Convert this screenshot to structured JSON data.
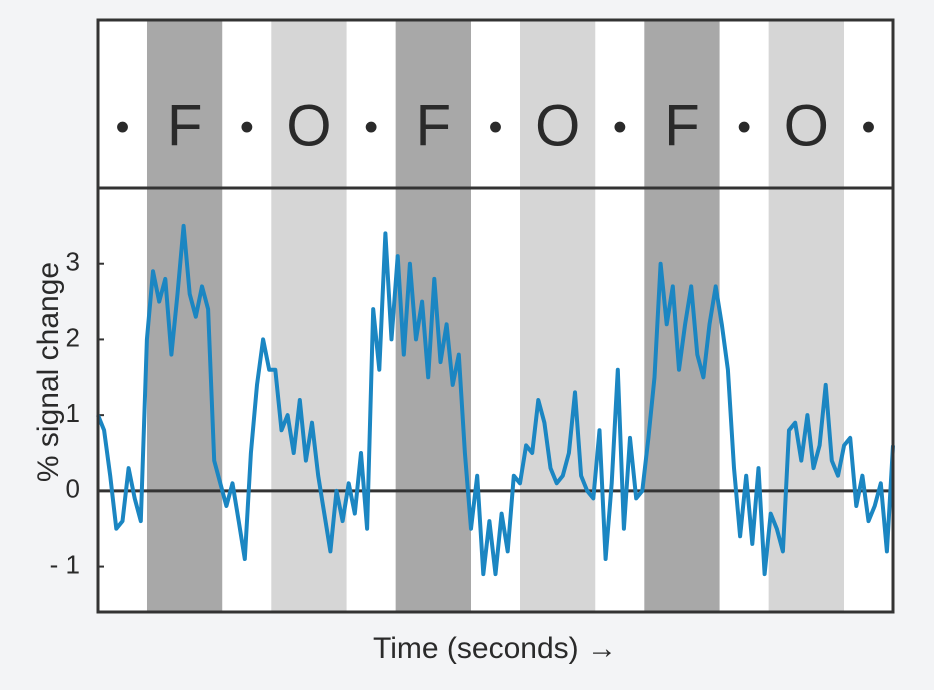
{
  "chart_data": {
    "type": "line",
    "ylabel": "% signal change",
    "xlabel": "Time (seconds) →",
    "blocks": [
      {
        "label": "•",
        "color": "#ffffff"
      },
      {
        "label": "F",
        "color": "#a8a8a8"
      },
      {
        "label": "•",
        "color": "#ffffff"
      },
      {
        "label": "O",
        "color": "#d6d6d6"
      },
      {
        "label": "•",
        "color": "#ffffff"
      },
      {
        "label": "F",
        "color": "#a8a8a8"
      },
      {
        "label": "•",
        "color": "#ffffff"
      },
      {
        "label": "O",
        "color": "#d6d6d6"
      },
      {
        "label": "•",
        "color": "#ffffff"
      },
      {
        "label": "F",
        "color": "#a8a8a8"
      },
      {
        "label": "•",
        "color": "#ffffff"
      },
      {
        "label": "O",
        "color": "#d6d6d6"
      },
      {
        "label": "•",
        "color": "#ffffff"
      }
    ],
    "color": "#1b86c2",
    "values": [
      1.0,
      0.8,
      0.2,
      -0.5,
      -0.4,
      0.3,
      -0.1,
      -0.4,
      2.0,
      2.9,
      2.5,
      2.8,
      1.8,
      2.6,
      3.5,
      2.6,
      2.3,
      2.7,
      2.4,
      0.4,
      0.1,
      -0.2,
      0.1,
      -0.4,
      -0.9,
      0.5,
      1.4,
      2.0,
      1.6,
      1.6,
      0.8,
      1.0,
      0.5,
      1.2,
      0.4,
      0.9,
      0.2,
      -0.3,
      -0.8,
      0.0,
      -0.4,
      0.1,
      -0.3,
      0.5,
      -0.5,
      2.4,
      1.6,
      3.4,
      2.0,
      3.1,
      1.8,
      3.0,
      2.0,
      2.5,
      1.5,
      2.8,
      1.7,
      2.2,
      1.4,
      1.8,
      0.5,
      -0.5,
      0.2,
      -1.1,
      -0.4,
      -1.1,
      -0.3,
      -0.8,
      0.2,
      0.1,
      0.6,
      0.5,
      1.2,
      0.9,
      0.3,
      0.1,
      0.2,
      0.5,
      1.3,
      0.2,
      0.0,
      -0.1,
      0.8,
      -0.9,
      0.1,
      1.6,
      -0.5,
      0.7,
      -0.1,
      0.0,
      0.7,
      1.5,
      3.0,
      2.2,
      2.7,
      1.6,
      2.2,
      2.7,
      1.8,
      1.5,
      2.2,
      2.7,
      2.2,
      1.6,
      0.3,
      -0.6,
      0.2,
      -0.7,
      0.3,
      -1.1,
      -0.3,
      -0.5,
      -0.8,
      0.8,
      0.9,
      0.4,
      1.0,
      0.3,
      0.6,
      1.4,
      0.4,
      0.2,
      0.6,
      0.7,
      -0.2,
      0.2,
      -0.4,
      -0.2,
      0.1,
      -0.8,
      0.6
    ],
    "ylim": [
      -1.6,
      4.0
    ],
    "yticks": [
      {
        "value": -1,
        "label": "- 1"
      },
      0,
      1,
      2,
      3
    ]
  }
}
